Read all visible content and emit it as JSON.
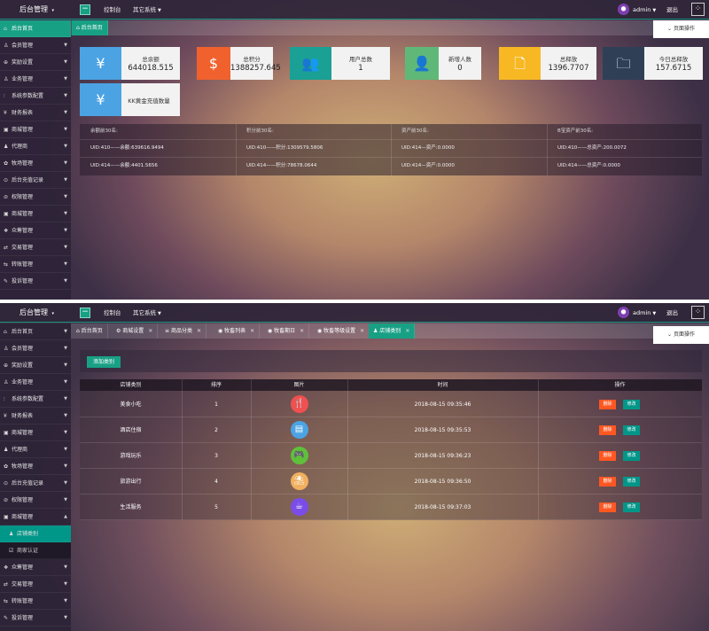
{
  "app": {
    "brand": "后台管理",
    "brand_caret": "▾",
    "console": "控制台",
    "other_system": "其它系统",
    "user": "admin",
    "logout": "退出",
    "page_ops": "页面操作",
    "toggle": "−",
    "grid_icon": "grid-icon"
  },
  "sidebar1": [
    {
      "label": "后台首页",
      "icon": "home-icon",
      "active": true
    },
    {
      "label": "会员管理",
      "icon": "user-icon"
    },
    {
      "label": "奖励设置",
      "icon": "gift-icon"
    },
    {
      "label": "业务管理",
      "icon": "user-icon"
    },
    {
      "label": "系统参数配置",
      "icon": "sliders-icon"
    },
    {
      "label": "财务报表",
      "icon": "money-icon"
    },
    {
      "label": "商城管理",
      "icon": "shop-icon"
    },
    {
      "label": "代理商",
      "icon": "agent-icon"
    },
    {
      "label": "牧场管理",
      "icon": "farm-icon"
    },
    {
      "label": "后台充值记录",
      "icon": "recharge-icon"
    },
    {
      "label": "权限管理",
      "icon": "lock-icon"
    },
    {
      "label": "商城管理",
      "icon": "shop-icon"
    },
    {
      "label": "众筹管理",
      "icon": "crowd-icon"
    },
    {
      "label": "交易管理",
      "icon": "trade-icon"
    },
    {
      "label": "转账管理",
      "icon": "transfer-icon"
    },
    {
      "label": "投诉管理",
      "icon": "complaint-icon"
    }
  ],
  "sidebar2": [
    {
      "label": "后台首页",
      "icon": "home-icon"
    },
    {
      "label": "会员管理",
      "icon": "user-icon"
    },
    {
      "label": "奖励设置",
      "icon": "gift-icon"
    },
    {
      "label": "业务管理",
      "icon": "user-icon"
    },
    {
      "label": "系统参数配置",
      "icon": "sliders-icon"
    },
    {
      "label": "财务报表",
      "icon": "money-icon"
    },
    {
      "label": "商城管理",
      "icon": "shop-icon"
    },
    {
      "label": "代理商",
      "icon": "agent-icon"
    },
    {
      "label": "牧场管理",
      "icon": "farm-icon"
    },
    {
      "label": "后台充值记录",
      "icon": "recharge-icon"
    },
    {
      "label": "权限管理",
      "icon": "lock-icon"
    },
    {
      "label": "商城管理",
      "icon": "shop-icon",
      "expanded": true
    },
    {
      "label": "店铺类别",
      "icon": "person-icon",
      "sub": true,
      "active": true
    },
    {
      "label": "商家认证",
      "icon": "cert-icon",
      "sub": true
    },
    {
      "label": "众筹管理",
      "icon": "crowd-icon"
    },
    {
      "label": "交易管理",
      "icon": "trade-icon"
    },
    {
      "label": "转账管理",
      "icon": "transfer-icon"
    },
    {
      "label": "投诉管理",
      "icon": "complaint-icon"
    }
  ],
  "tabs1": [
    {
      "label": "后台首页",
      "icon": "home-icon",
      "active": true
    }
  ],
  "tabs2": [
    {
      "label": "后台首页",
      "icon": "home-icon"
    },
    {
      "label": "商城设置",
      "icon": "gear-icon",
      "close": "✕"
    },
    {
      "label": "商品分类",
      "icon": "list-icon",
      "close": "✕"
    },
    {
      "label": "牧畜列表",
      "icon": "circle-icon",
      "close": "✕"
    },
    {
      "label": "牧畜期日",
      "icon": "circle-icon",
      "close": "✕"
    },
    {
      "label": "牧畜等级设置",
      "icon": "circle-icon",
      "close": "✕"
    },
    {
      "label": "店铺类别",
      "icon": "person-icon",
      "close": "✕",
      "active": true
    }
  ],
  "cards": [
    {
      "title": "总余额",
      "value": "644018.515",
      "icon": "yen-icon",
      "glyph": "¥",
      "color": "#4ba3e3"
    },
    {
      "title": "总积分",
      "value": "1388257.645",
      "icon": "dollar-icon",
      "glyph": "$",
      "color": "#f0612e"
    },
    {
      "title": "用户总数",
      "value": "1",
      "icon": "users-icon",
      "glyph": "👥",
      "color": "#1aa094"
    },
    {
      "title": "新增人数",
      "value": "0",
      "icon": "user-icon",
      "glyph": "👤",
      "color": "#5fb878"
    },
    {
      "title": "总释放",
      "value": "1396.7707",
      "icon": "file-icon",
      "glyph": "🗋",
      "color": "#f7b824"
    },
    {
      "title": "今日总释放",
      "value": "157.6715",
      "icon": "folder-icon",
      "glyph": "🗀",
      "color": "#2f4056"
    },
    {
      "title": "KK黄金充值数量",
      "value": "",
      "icon": "yen-icon",
      "glyph": "¥",
      "color": "#4ba3e3"
    }
  ],
  "rank": {
    "headers": [
      "余额前30名:",
      "积分前30名:",
      "资产前30名:",
      "B宝资产前30名:"
    ],
    "rows": [
      [
        "UID:410——余额:639616.9494",
        "UID:410——积分:1309579.5806",
        "UID:414—资产:0.0000",
        "UID:410——总资产:200.0072"
      ],
      [
        "UID:414——余额:4401.5656",
        "UID:414——积分:78678.0644",
        "UID:414—资产:0.0000",
        "UID:414——总资产:0.0000"
      ]
    ]
  },
  "category": {
    "add_button": "添加类别",
    "headers": [
      "店铺类别",
      "排序",
      "图片",
      "时间",
      "操作"
    ],
    "delete_label": "删除",
    "edit_label": "修改",
    "rows": [
      {
        "name": "美食小吃",
        "order": "1",
        "time": "2018-08-15 09:35:46",
        "icon": "food-icon",
        "glyph": "🍴",
        "color": "#f05050"
      },
      {
        "name": "酒店住宿",
        "order": "2",
        "time": "2018-08-15 09:35:53",
        "icon": "hotel-icon",
        "glyph": "▤",
        "color": "#4ba3e3"
      },
      {
        "name": "游戏玩乐",
        "order": "3",
        "time": "2018-08-15 09:36:23",
        "icon": "game-icon",
        "glyph": "🎮",
        "color": "#5fc13a"
      },
      {
        "name": "旅游出行",
        "order": "4",
        "time": "2018-08-15 09:36:50",
        "icon": "travel-icon",
        "glyph": "⛱",
        "color": "#f0b060"
      },
      {
        "name": "生活服务",
        "order": "5",
        "time": "2018-08-15 09:37:03",
        "icon": "service-icon",
        "glyph": "☕",
        "color": "#7b4de8"
      }
    ]
  }
}
